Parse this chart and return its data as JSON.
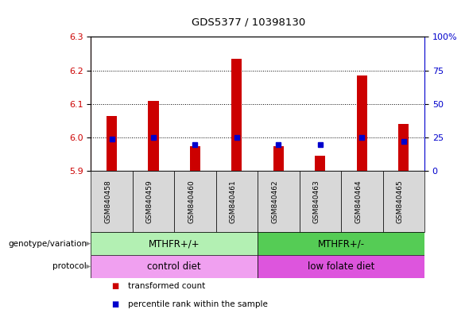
{
  "title": "GDS5377 / 10398130",
  "samples": [
    "GSM840458",
    "GSM840459",
    "GSM840460",
    "GSM840461",
    "GSM840462",
    "GSM840463",
    "GSM840464",
    "GSM840465"
  ],
  "transformed_count": [
    6.065,
    6.11,
    5.975,
    6.235,
    5.975,
    5.945,
    6.185,
    6.04
  ],
  "percentile_rank": [
    24,
    25,
    20,
    25,
    20,
    20,
    25,
    22
  ],
  "ylim_left": [
    5.9,
    6.3
  ],
  "ylim_right": [
    0,
    100
  ],
  "yticks_left": [
    5.9,
    6.0,
    6.1,
    6.2,
    6.3
  ],
  "yticks_right": [
    0,
    25,
    50,
    75,
    100
  ],
  "ytick_labels_right": [
    "0",
    "25",
    "50",
    "75",
    "100%"
  ],
  "bar_color": "#cc0000",
  "dot_color": "#0000cc",
  "bar_bottom": 5.9,
  "genotype_labels": [
    "MTHFR+/+",
    "MTHFR+/-"
  ],
  "genotype_color_left": "#b3f0b3",
  "genotype_color_right": "#55cc55",
  "protocol_labels": [
    "control diet",
    "low folate diet"
  ],
  "protocol_color_left": "#f0a0f0",
  "protocol_color_right": "#dd55dd",
  "left_labels": [
    "genotype/variation",
    "protocol"
  ],
  "legend_items": [
    "transformed count",
    "percentile rank within the sample"
  ],
  "legend_colors": [
    "#cc0000",
    "#0000cc"
  ],
  "bar_width": 0.25,
  "tick_gray": "#c8c8c8",
  "sample_box_color": "#d8d8d8"
}
